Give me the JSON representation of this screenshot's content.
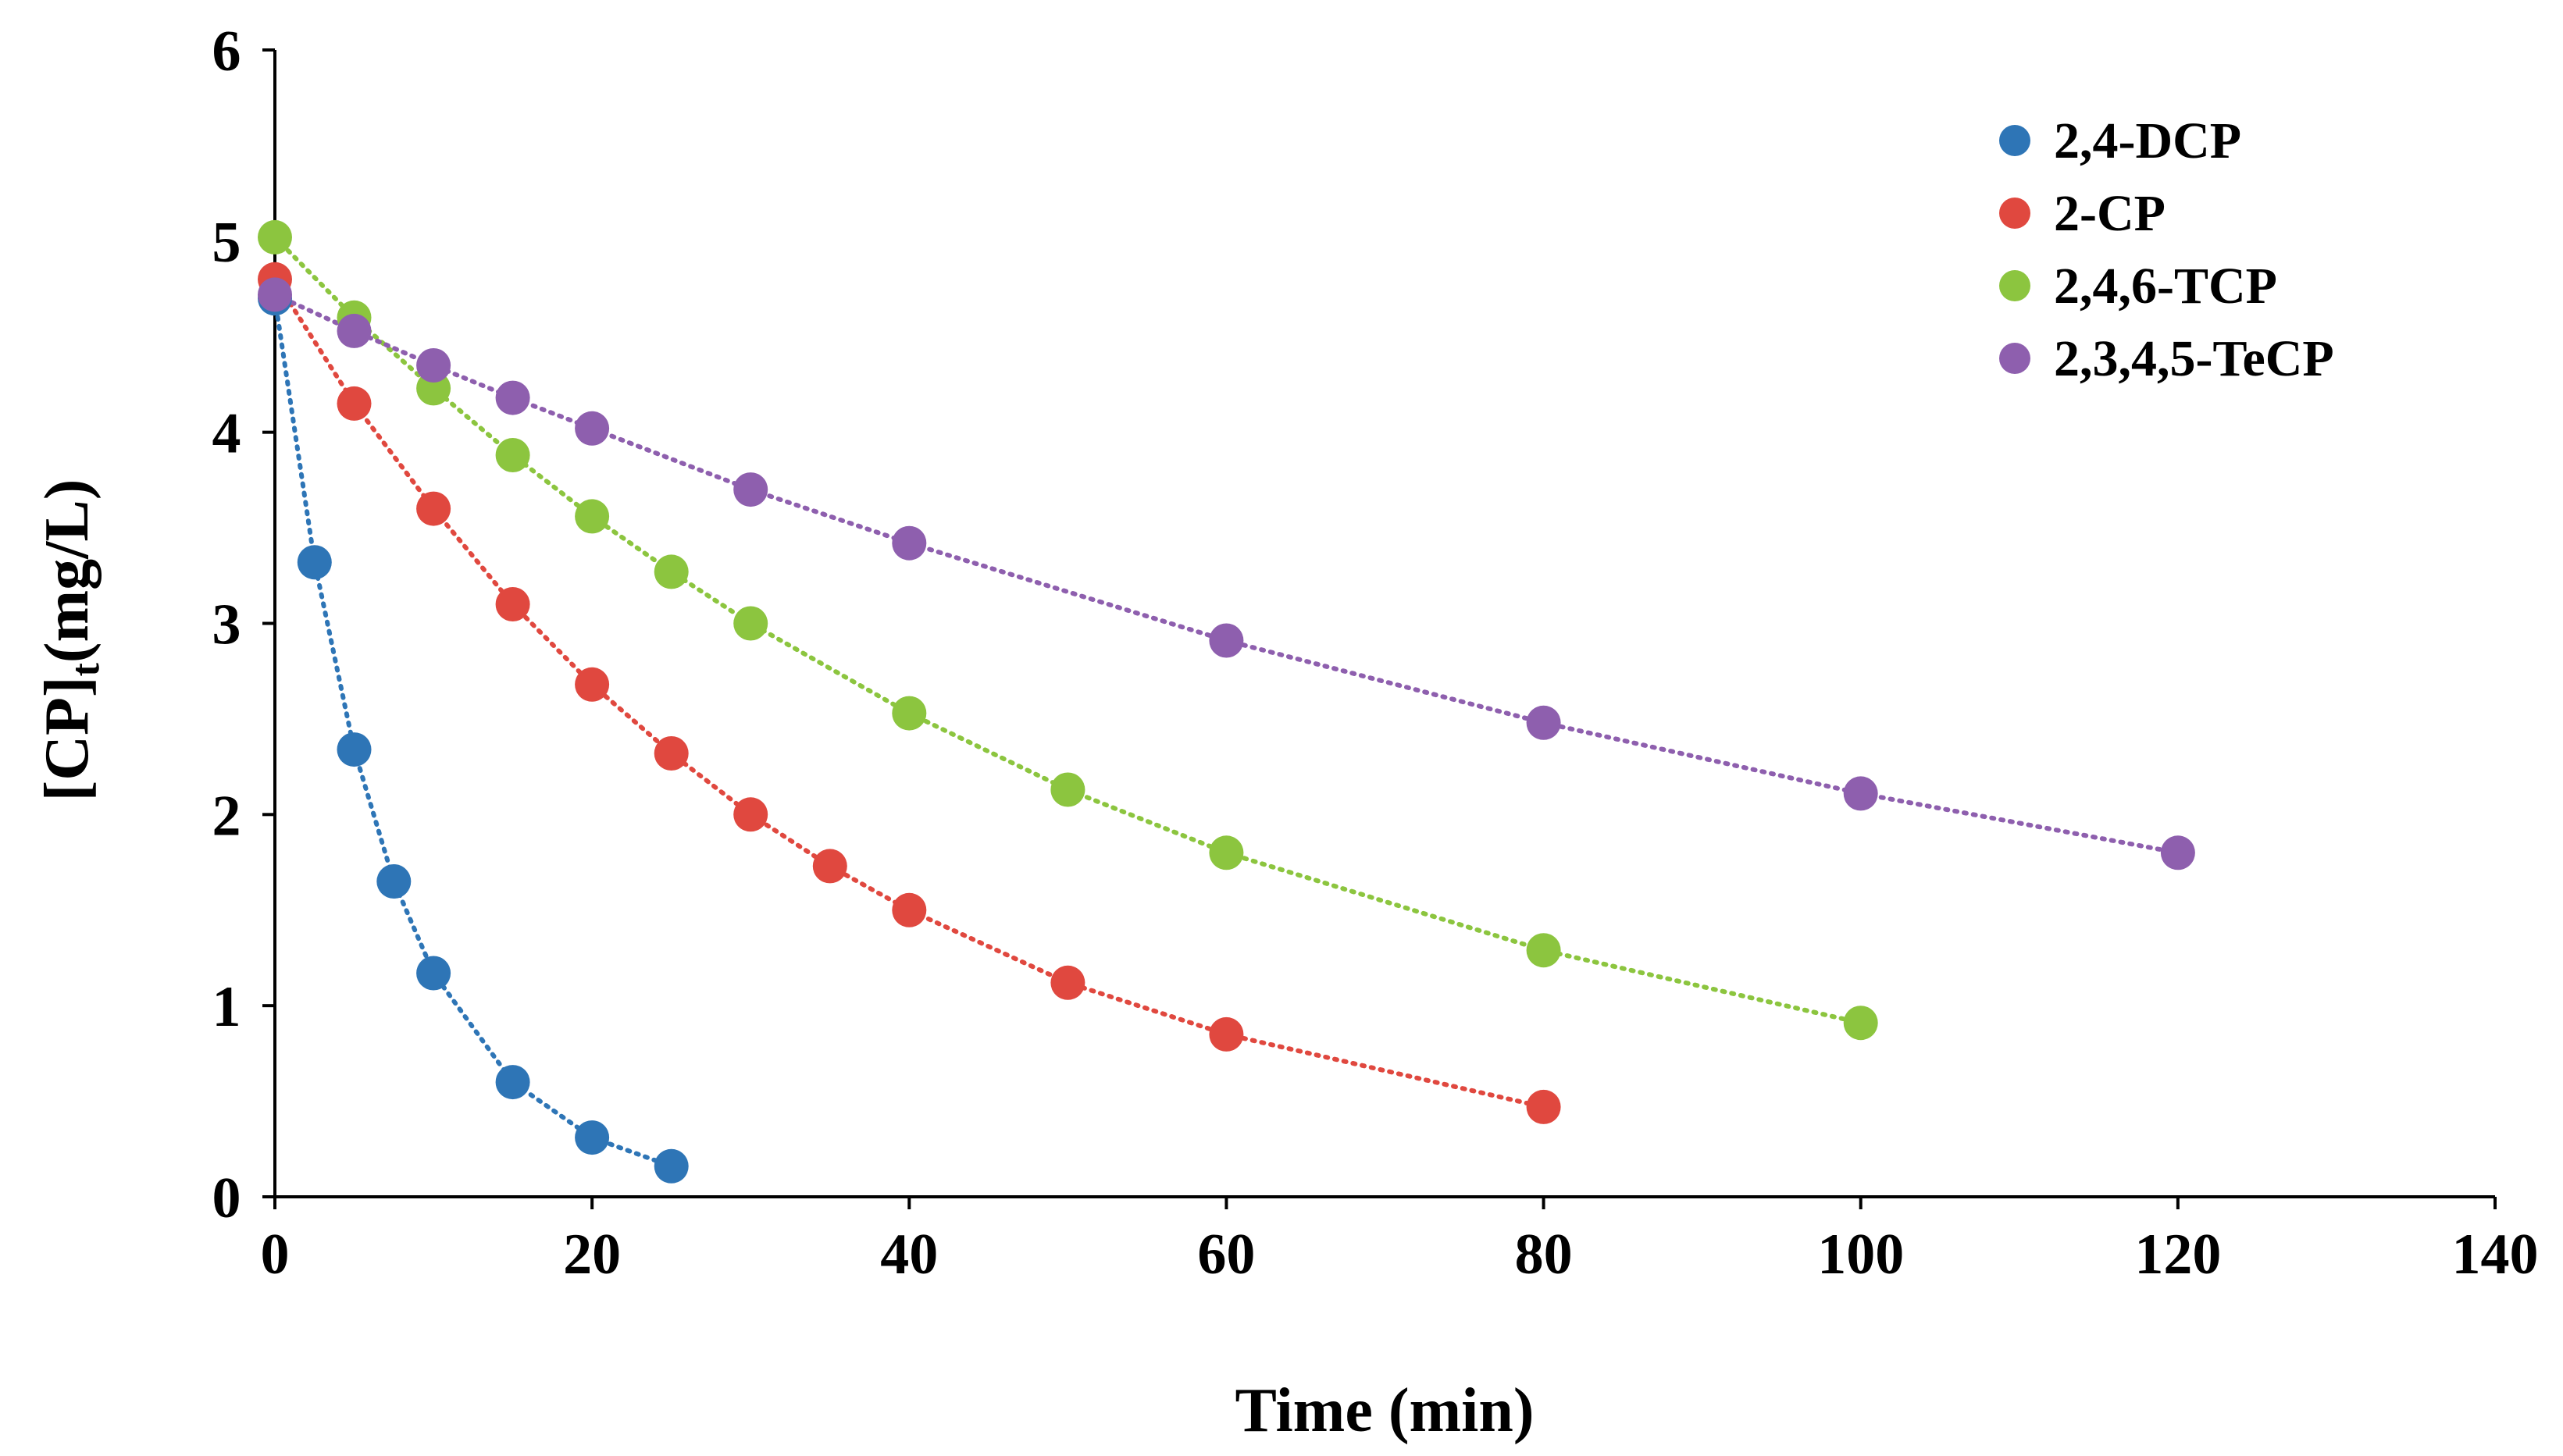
{
  "chart_data": {
    "type": "scatter",
    "title": "",
    "xlabel": "Time (min)",
    "ylabel": "[CP]t(mg/L)",
    "ylabel_main_before": "[CP]",
    "ylabel_subscript": "t",
    "ylabel_main_after": "(mg/L)",
    "xlim": [
      0,
      140
    ],
    "ylim": [
      0,
      6
    ],
    "xticks": [
      "0",
      "20",
      "40",
      "60",
      "80",
      "100",
      "120",
      "140"
    ],
    "yticks": [
      "0",
      "1",
      "2",
      "3",
      "4",
      "5",
      "6"
    ],
    "grid": false,
    "legend_position": "top-right",
    "series": [
      {
        "name": "2,4-DCP",
        "color": "#2e75b6",
        "x": [
          0,
          2.5,
          5,
          7.5,
          10,
          15,
          20,
          25
        ],
        "y": [
          4.7,
          3.32,
          2.34,
          1.65,
          1.17,
          0.6,
          0.31,
          0.16
        ]
      },
      {
        "name": "2-CP",
        "color": "#e0483f",
        "x": [
          0,
          5,
          10,
          15,
          20,
          25,
          30,
          35,
          40,
          50,
          60,
          80
        ],
        "y": [
          4.8,
          4.15,
          3.6,
          3.1,
          2.68,
          2.32,
          2.0,
          1.73,
          1.5,
          1.12,
          0.85,
          0.47
        ]
      },
      {
        "name": "2,4,6-TCP",
        "color": "#8cc53f",
        "x": [
          0,
          5,
          10,
          15,
          20,
          25,
          30,
          40,
          50,
          60,
          80,
          100
        ],
        "y": [
          5.02,
          4.6,
          4.23,
          3.88,
          3.56,
          3.27,
          3.0,
          2.53,
          2.13,
          1.8,
          1.29,
          0.91
        ]
      },
      {
        "name": "2,3,4,5-TeCP",
        "color": "#8e5fae",
        "x": [
          0,
          5,
          10,
          15,
          20,
          30,
          40,
          60,
          80,
          100,
          120
        ],
        "y": [
          4.72,
          4.53,
          4.35,
          4.18,
          4.02,
          3.7,
          3.42,
          2.91,
          2.48,
          2.11,
          1.8
        ]
      }
    ]
  }
}
